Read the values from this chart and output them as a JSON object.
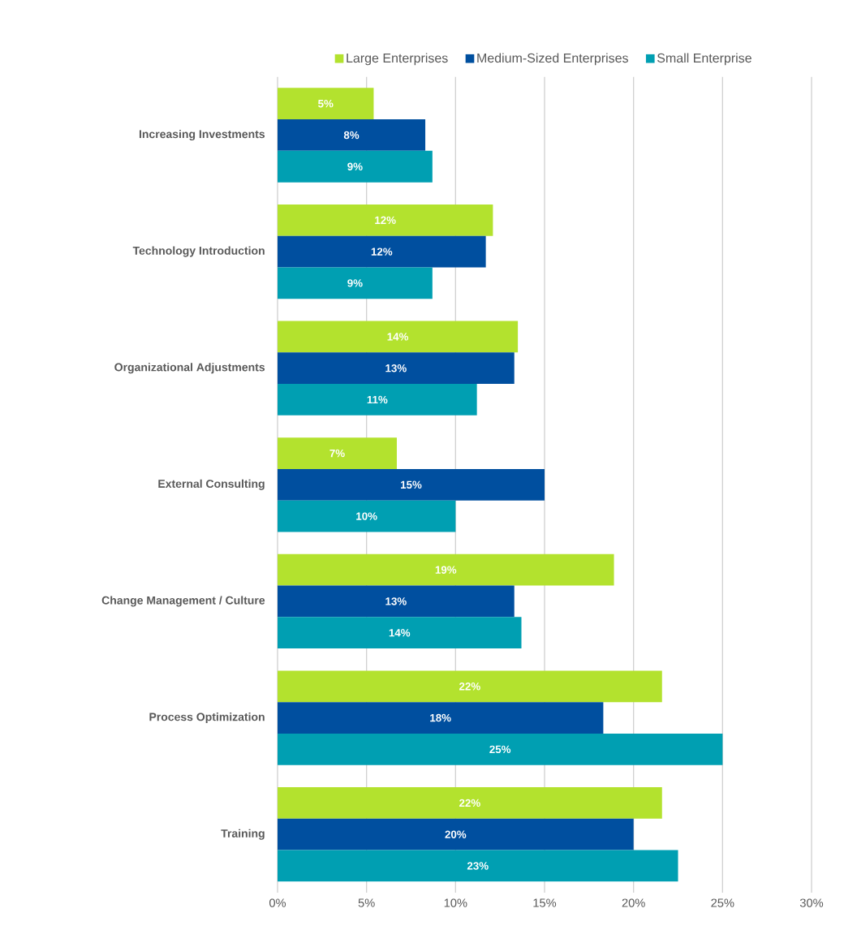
{
  "chart_data": {
    "type": "bar",
    "orientation": "horizontal",
    "categories": [
      "Increasing Investments",
      "Technology Introduction",
      "Organizational Adjustments",
      "External Consulting",
      "Change Management / Culture",
      "Process Optimization",
      "Training"
    ],
    "series": [
      {
        "name": "Large Enterprises",
        "color": "#b3e22e",
        "values": [
          5.4,
          12.1,
          13.5,
          6.7,
          18.9,
          21.6,
          21.6
        ],
        "value_labels": [
          "5%",
          "12%",
          "14%",
          "7%",
          "19%",
          "22%",
          "22%"
        ]
      },
      {
        "name": "Medium-Sized Enterprises",
        "color": "#004f9f",
        "values": [
          8.3,
          11.7,
          13.3,
          15.0,
          13.3,
          18.3,
          20.0
        ],
        "value_labels": [
          "8%",
          "12%",
          "13%",
          "15%",
          "13%",
          "18%",
          "20%"
        ]
      },
      {
        "name": "Small Enterprise",
        "color": "#009fb2",
        "values": [
          8.7,
          8.7,
          11.2,
          10.0,
          13.7,
          25.0,
          22.5
        ],
        "value_labels": [
          "9%",
          "9%",
          "11%",
          "10%",
          "14%",
          "25%",
          "23%"
        ]
      }
    ],
    "xlim": [
      0,
      30
    ],
    "xticks": [
      {
        "value": 0,
        "label": "0%"
      },
      {
        "value": 5,
        "label": "5%"
      },
      {
        "value": 10,
        "label": "10%"
      },
      {
        "value": 15,
        "label": "15%"
      },
      {
        "value": 20,
        "label": "20%"
      },
      {
        "value": 25,
        "label": "25%"
      },
      {
        "value": 30,
        "label": "30%"
      }
    ],
    "grid": "x",
    "legend": "top"
  }
}
